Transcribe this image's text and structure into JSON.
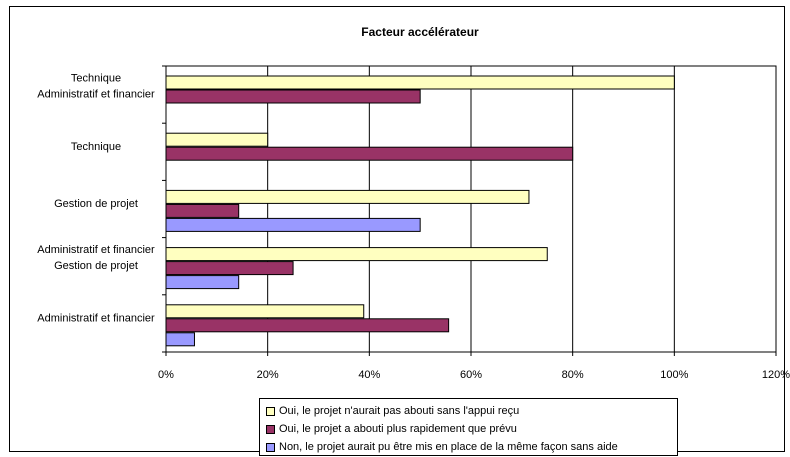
{
  "chart_data": {
    "type": "bar",
    "orientation": "horizontal",
    "title": "Facteur accélérateur",
    "xlabel": "",
    "ylabel": "",
    "xlim": [
      0,
      120
    ],
    "x_ticks": [
      "0%",
      "20%",
      "40%",
      "60%",
      "80%",
      "100%",
      "120%"
    ],
    "gridlines": "vertical",
    "legend_position": "bottom",
    "categories": [
      [
        "Technique",
        "Administratif et financier"
      ],
      [
        "Technique"
      ],
      [
        "Gestion de projet"
      ],
      [
        "Administratif et financier",
        "Gestion de projet"
      ],
      [
        "Administratif et financier"
      ]
    ],
    "series": [
      {
        "name": "Oui, le projet n'aurait pas abouti sans l'appui reçu",
        "color": "#ffffc0",
        "values": [
          100,
          20,
          71.4,
          75,
          38.9
        ]
      },
      {
        "name": "Oui, le projet a abouti plus rapidement que prévu",
        "color": "#993366",
        "values": [
          50,
          80,
          14.3,
          25,
          55.6
        ]
      },
      {
        "name": "Non, le projet aurait pu être mis en place de la même façon sans aide",
        "color": "#9999ff",
        "values": [
          null,
          null,
          50,
          14.3,
          5.6
        ]
      }
    ]
  }
}
